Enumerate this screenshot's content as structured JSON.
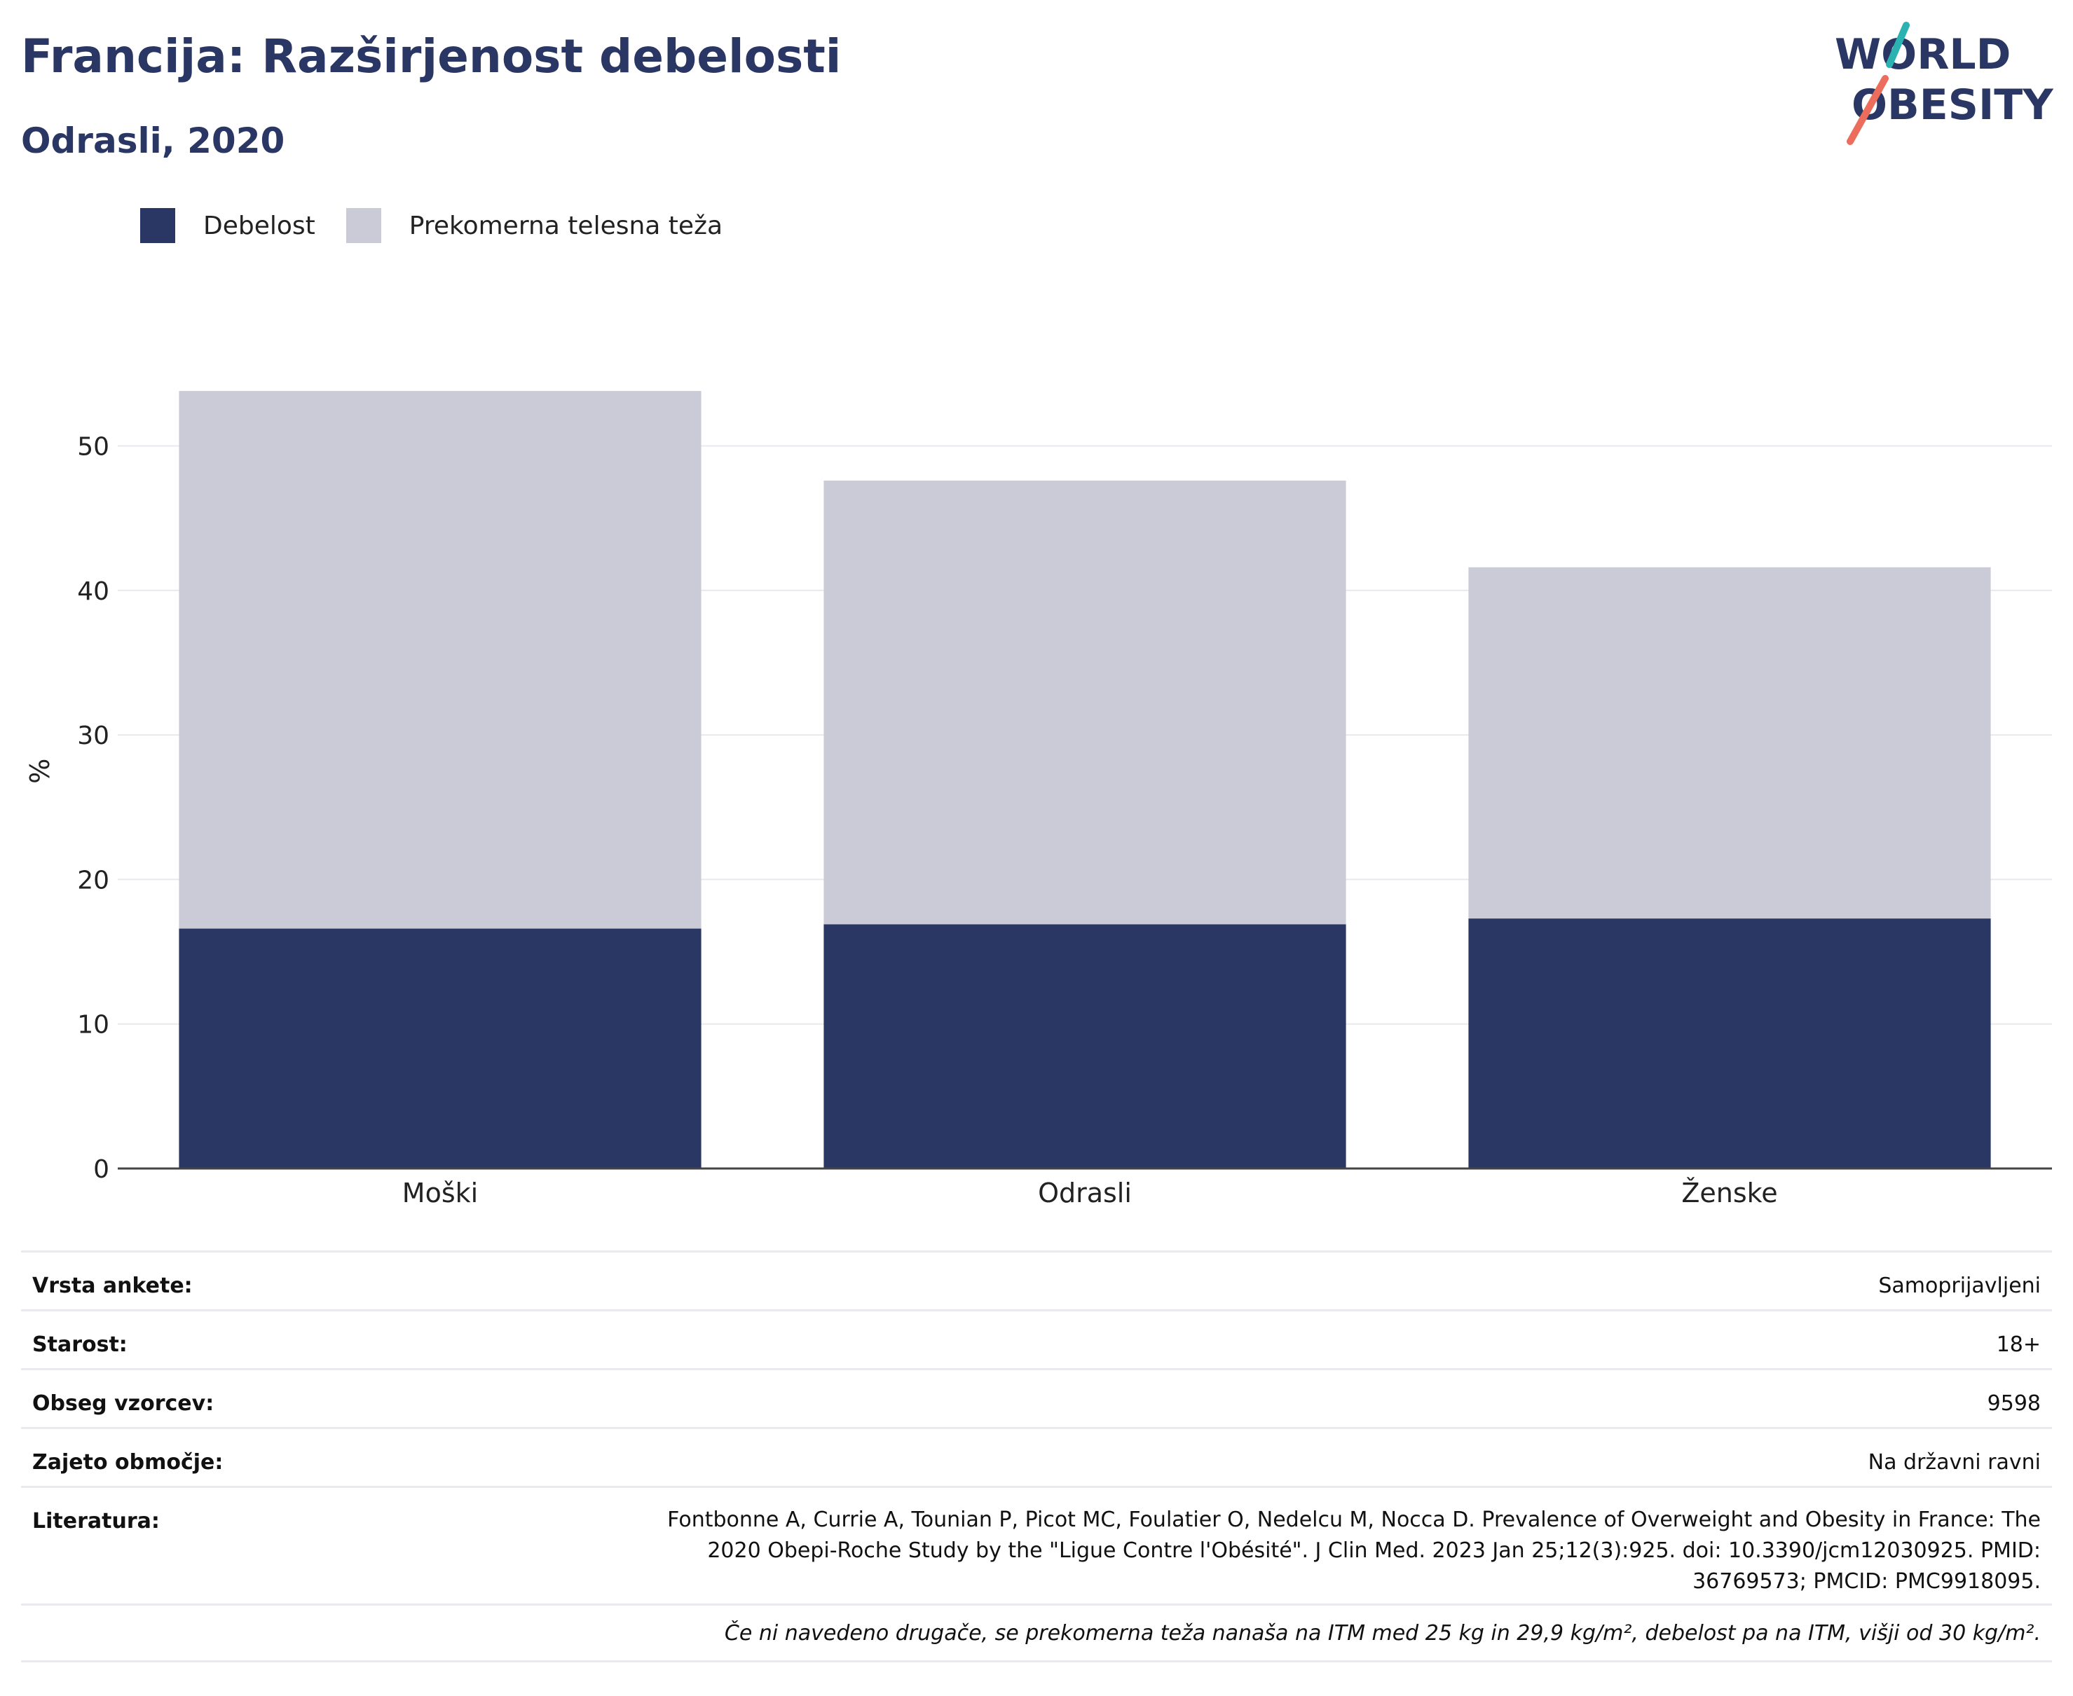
{
  "title": "Francija: Razširjenost debelosti",
  "subtitle": "Odrasli, 2020",
  "logo": {
    "line1": "WORLD",
    "line2": "OBESITY",
    "accent_teal": "#2bb3b1",
    "accent_coral": "#ec6d5b",
    "color": "#2a3764"
  },
  "chart_data": {
    "type": "bar",
    "stacked": true,
    "categories": [
      "Moški",
      "Odrasli",
      "Ženske"
    ],
    "series": [
      {
        "name": "Debelost",
        "color": "#2a3764",
        "values": [
          16.6,
          16.9,
          17.3
        ]
      },
      {
        "name": "Prekomerna telesna teža",
        "color": "#cacbd7",
        "values": [
          37.2,
          30.7,
          24.3
        ]
      }
    ],
    "ylabel": "%",
    "ylim": [
      0,
      55
    ],
    "yticks": [
      0,
      10,
      20,
      30,
      40,
      50
    ],
    "grid": true,
    "legend_position": "top-left"
  },
  "info": {
    "survey_type": {
      "label": "Vrsta ankete:",
      "value": "Samoprijavljeni"
    },
    "age": {
      "label": "Starost:",
      "value": "18+"
    },
    "sample_size": {
      "label": "Obseg vzorcev:",
      "value": "9598"
    },
    "coverage": {
      "label": "Zajeto območje:",
      "value": "Na državni ravni"
    },
    "references": {
      "label": "Literatura:",
      "value": "Fontbonne A, Currie A, Tounian P, Picot MC, Foulatier O, Nedelcu M, Nocca D. Prevalence of Overweight and Obesity in France: The 2020 Obepi-Roche Study by the \"Ligue Contre l'Obésité\". J Clin Med. 2023 Jan 25;12(3):925. doi: 10.3390/jcm12030925. PMID: 36769573; PMCID: PMC9918095."
    }
  },
  "note": "Če ni navedeno drugače, se prekomerna teža nanaša na ITM med 25 kg in 29,9 kg/m², debelost pa na ITM, višji od 30 kg/m²."
}
